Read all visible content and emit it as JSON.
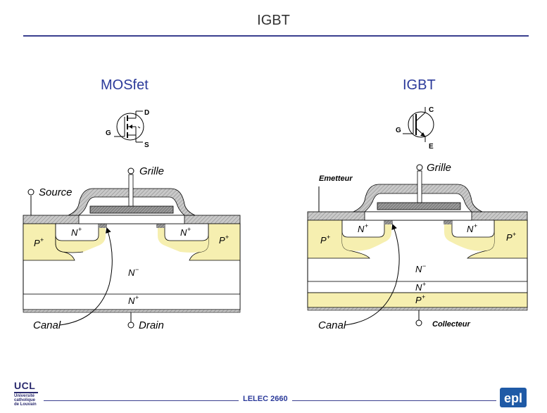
{
  "slide": {
    "title": "IGBT",
    "footer": "LELEC 2660"
  },
  "logos": {
    "ucl": {
      "name": "UCL",
      "line1": "Université",
      "line2": "catholique",
      "line3": "de Louvain"
    },
    "epl": "epl"
  },
  "mosfet": {
    "heading": "MOSfet",
    "symbol": {
      "g": "G",
      "d": "D",
      "s": "S"
    },
    "labels": {
      "grille": "Grille",
      "source": "Source",
      "drain": "Drain",
      "canal": "Canal",
      "nplus": "N",
      "pplus": "P",
      "nminus": "N",
      "plus": "+",
      "minus": "−"
    }
  },
  "igbt": {
    "heading": "IGBT",
    "symbol": {
      "g": "G",
      "c": "C",
      "e": "E"
    },
    "labels": {
      "grille": "Grille",
      "emetteur": "Emetteur",
      "collecteur": "Collecteur",
      "canal": "Canal",
      "nplus": "N",
      "pplus": "P",
      "nminus": "N",
      "plus": "+",
      "minus": "−"
    }
  },
  "colors": {
    "accent": "#2b3a9a",
    "p_region": "#f6efb0",
    "metal": "#c8c8c8",
    "poly": "#8a8a8a"
  }
}
